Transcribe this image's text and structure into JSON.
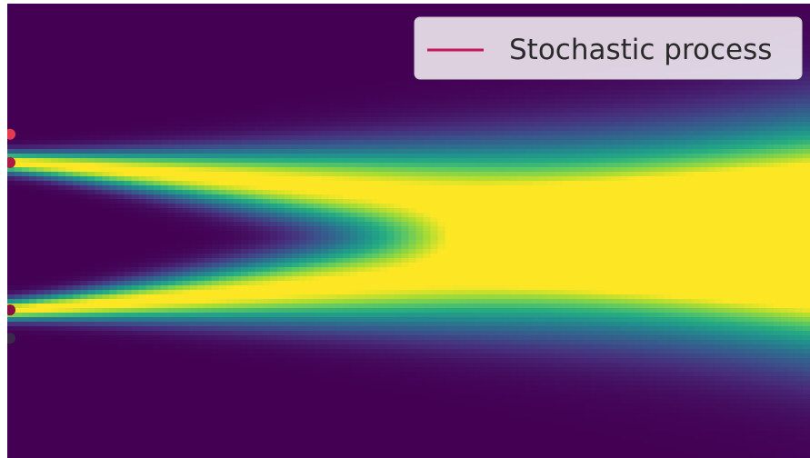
{
  "chart_data": {
    "type": "heatmap",
    "title": "",
    "xlabel": "",
    "ylabel": "",
    "colormap": "viridis",
    "density": {
      "description_free": true,
      "x_range": [
        0,
        1
      ],
      "y_range": [
        -1,
        1
      ],
      "start_modes": [
        0.52,
        -0.52
      ],
      "start_sigma": 0.045,
      "end_sigma": 0.42,
      "drift_power": 1.15,
      "spread_power": 1.25
    },
    "series": [
      {
        "name": "Stochastic process",
        "color": "#c2185b",
        "start_points_y": [
          0.72,
          0.52,
          -0.52,
          -0.72
        ],
        "start_point_colors": [
          "#e63a4f",
          "#b01846",
          "#8a0f47",
          "#3a2a4a"
        ]
      }
    ],
    "legend": {
      "placement": "top-right",
      "entries": [
        "Stochastic process"
      ]
    }
  }
}
